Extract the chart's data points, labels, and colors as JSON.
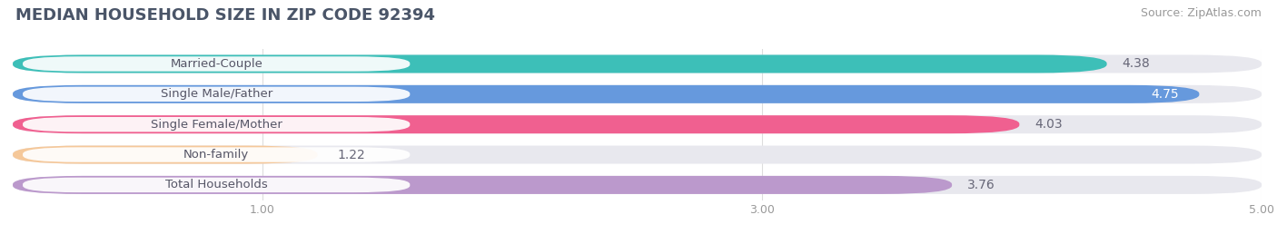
{
  "title": "MEDIAN HOUSEHOLD SIZE IN ZIP CODE 92394",
  "source": "Source: ZipAtlas.com",
  "categories": [
    "Married-Couple",
    "Single Male/Father",
    "Single Female/Mother",
    "Non-family",
    "Total Households"
  ],
  "values": [
    4.38,
    4.75,
    4.03,
    1.22,
    3.76
  ],
  "bar_colors": [
    "#3dbfb8",
    "#6699dd",
    "#f06090",
    "#f5c89a",
    "#bb99cc"
  ],
  "bar_bg_color": "#e8e8ee",
  "xlim": [
    0,
    5.0
  ],
  "xticks": [
    1.0,
    3.0,
    5.0
  ],
  "title_color": "#4a5568",
  "title_fontsize": 13,
  "source_fontsize": 9,
  "bar_label_fontsize": 10,
  "category_fontsize": 9.5,
  "tick_fontsize": 9,
  "bg_color": "#ffffff"
}
